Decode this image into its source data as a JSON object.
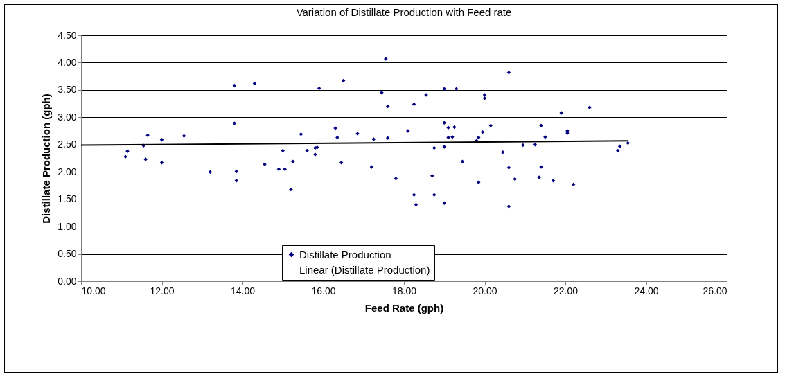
{
  "chart_data": {
    "type": "scatter",
    "title": "Variation of Distillate Production with Feed rate",
    "xlabel": "Feed Rate (gph)",
    "ylabel": "Distillate Production (gph)",
    "xlim": [
      10,
      26
    ],
    "ylim": [
      0,
      4.5
    ],
    "xticks": [
      {
        "value": 10,
        "label": "10.00"
      },
      {
        "value": 12,
        "label": "12.00"
      },
      {
        "value": 14,
        "label": "14.00"
      },
      {
        "value": 16,
        "label": "16.00"
      },
      {
        "value": 18,
        "label": "18.00"
      },
      {
        "value": 20,
        "label": "20.00"
      },
      {
        "value": 22,
        "label": "22.00"
      },
      {
        "value": 24,
        "label": "24.00"
      },
      {
        "value": 26,
        "label": "26.00"
      }
    ],
    "yticks": [
      {
        "value": 0,
        "label": "0.00"
      },
      {
        "value": 0.5,
        "label": "0.50"
      },
      {
        "value": 1,
        "label": "1.00"
      },
      {
        "value": 1.5,
        "label": "1.50"
      },
      {
        "value": 2,
        "label": "2.00"
      },
      {
        "value": 2.5,
        "label": "2.50"
      },
      {
        "value": 3,
        "label": "3.00"
      },
      {
        "value": 3.5,
        "label": "3.50"
      },
      {
        "value": 4,
        "label": "4.00"
      },
      {
        "value": 4.5,
        "label": "4.50"
      }
    ],
    "grid": "y",
    "legend": "bottom",
    "marker": "diamond",
    "series": [
      {
        "name": "Distillate Production",
        "color": "#000080",
        "x": [
          11.1,
          11.15,
          11.55,
          11.6,
          11.65,
          12.0,
          12.0,
          12.55,
          13.2,
          13.8,
          13.8,
          13.85,
          13.85,
          14.3,
          14.55,
          14.9,
          15.0,
          15.05,
          15.25,
          15.2,
          15.45,
          15.6,
          15.8,
          15.8,
          15.85,
          15.9,
          16.3,
          16.35,
          16.45,
          16.5,
          16.85,
          17.2,
          17.25,
          17.45,
          17.55,
          17.6,
          17.6,
          17.8,
          18.1,
          18.25,
          18.25,
          18.3,
          18.55,
          18.7,
          18.75,
          18.75,
          19.0,
          19.0,
          19.0,
          19.0,
          19.1,
          19.1,
          19.2,
          19.25,
          19.3,
          19.45,
          19.8,
          19.85,
          19.85,
          19.95,
          20.0,
          20.0,
          20.15,
          20.45,
          20.6,
          20.6,
          20.6,
          20.75,
          20.95,
          21.25,
          21.35,
          21.4,
          21.4,
          21.5,
          21.7,
          21.9,
          22.05,
          22.05,
          22.2,
          22.6,
          23.3,
          23.35,
          23.55
        ],
        "values": [
          2.28,
          2.38,
          2.48,
          2.23,
          2.67,
          2.59,
          2.17,
          2.66,
          2.0,
          3.58,
          2.89,
          2.01,
          1.84,
          3.62,
          2.14,
          2.05,
          2.39,
          2.05,
          2.19,
          1.68,
          2.69,
          2.39,
          2.32,
          2.44,
          2.45,
          3.53,
          2.8,
          2.63,
          2.17,
          3.67,
          2.7,
          2.09,
          2.6,
          3.45,
          4.07,
          3.2,
          2.62,
          1.88,
          2.75,
          3.24,
          1.58,
          1.4,
          3.41,
          1.93,
          2.44,
          1.58,
          3.52,
          2.9,
          2.46,
          1.43,
          2.81,
          2.63,
          2.64,
          2.82,
          3.52,
          2.19,
          2.57,
          2.63,
          1.81,
          2.73,
          3.41,
          3.35,
          2.85,
          2.36,
          3.82,
          2.08,
          1.37,
          1.87,
          2.49,
          2.5,
          1.9,
          2.85,
          2.09,
          2.64,
          1.84,
          3.08,
          2.75,
          2.71,
          1.77,
          3.18,
          2.39,
          2.47,
          2.53
        ]
      },
      {
        "name": "Linear (Distillate Production)",
        "type": "line",
        "marker": "none",
        "color": "#000000",
        "line_style": "solid",
        "x": [
          10,
          23.55
        ],
        "values": [
          2.49,
          2.57
        ]
      }
    ]
  }
}
